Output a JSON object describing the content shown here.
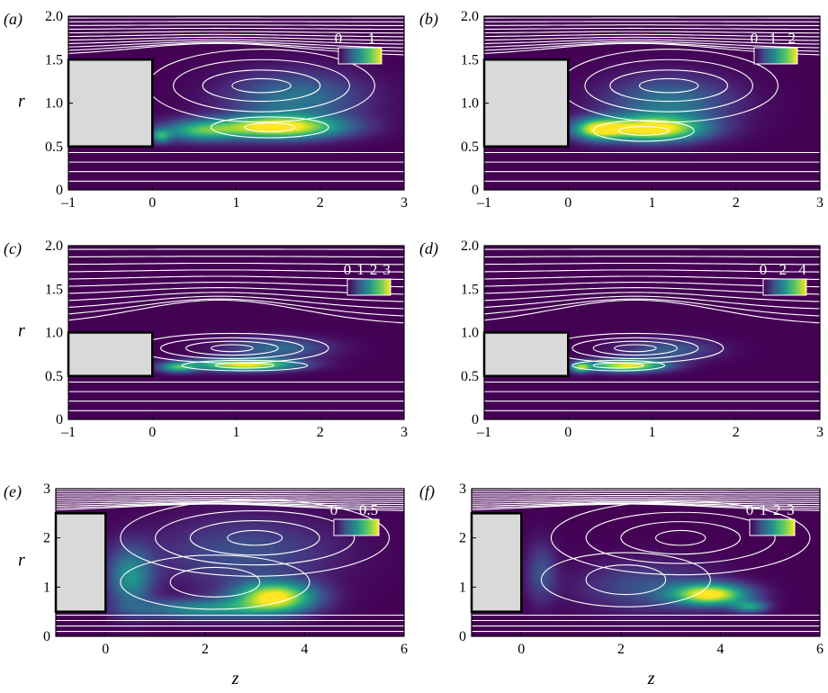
{
  "chart_data": [
    {
      "type": "heatmap",
      "panel_label": "(a)",
      "xlim": [
        -1,
        3
      ],
      "ylim": [
        0,
        2
      ],
      "xticks": [
        "-1",
        "0",
        "1",
        "2",
        "3"
      ],
      "xtick_values": [
        -1,
        0,
        1,
        2,
        3
      ],
      "yticks": [
        "0",
        "0.5",
        "1.0",
        "1.5",
        "2.0"
      ],
      "ytick_values": [
        0,
        0.5,
        1.0,
        1.5,
        2.0
      ],
      "ylabel": "r",
      "xlabel": "",
      "colorbar_ticks": [
        "0",
        "1"
      ],
      "colorbar_tick_values": [
        0,
        1
      ],
      "colorbar_range": [
        0,
        1.3
      ],
      "body": {
        "z0": -1,
        "z1": 0,
        "r0": 0.5,
        "r1": 1.5
      },
      "field": [
        {
          "z": 1.5,
          "r": 0.72,
          "sz": 0.75,
          "sr": 0.13,
          "a": 1.0
        },
        {
          "z": 0.55,
          "r": 0.68,
          "sz": 0.45,
          "sr": 0.12,
          "a": 0.55
        },
        {
          "z": 1.7,
          "r": 1.05,
          "sz": 0.8,
          "sr": 0.3,
          "a": 0.4
        },
        {
          "z": 0.1,
          "r": 0.62,
          "sz": 0.12,
          "sr": 0.08,
          "a": 0.5
        }
      ],
      "vortices": [
        {
          "z": 1.3,
          "r": 1.2,
          "rz": [
            0.35,
            0.7,
            1.05,
            1.35
          ],
          "rr": [
            0.08,
            0.18,
            0.3,
            0.42
          ]
        },
        {
          "z": 1.4,
          "r": 0.72,
          "rz": [
            0.3,
            0.7
          ],
          "rr": [
            0.05,
            0.12
          ]
        }
      ]
    },
    {
      "type": "heatmap",
      "panel_label": "(b)",
      "xlim": [
        -1,
        3
      ],
      "ylim": [
        0,
        2
      ],
      "xticks": [
        "-1",
        "0",
        "1",
        "2",
        "3"
      ],
      "xtick_values": [
        -1,
        0,
        1,
        2,
        3
      ],
      "yticks": [
        "0",
        "0.5",
        "1.0",
        "1.5",
        "2.0"
      ],
      "ytick_values": [
        0,
        0.5,
        1.0,
        1.5,
        2.0
      ],
      "ylabel": "",
      "xlabel": "",
      "colorbar_ticks": [
        "0",
        "1",
        "2"
      ],
      "colorbar_tick_values": [
        0,
        1,
        2
      ],
      "colorbar_range": [
        0,
        2.3
      ],
      "body": {
        "z0": -1,
        "z1": 0,
        "r0": 0.5,
        "r1": 1.5
      },
      "field": [
        {
          "z": 1.0,
          "r": 0.7,
          "sz": 0.6,
          "sr": 0.14,
          "a": 1.0
        },
        {
          "z": 0.35,
          "r": 0.7,
          "sz": 0.3,
          "sr": 0.12,
          "a": 0.8
        },
        {
          "z": 1.2,
          "r": 1.0,
          "sz": 0.75,
          "sr": 0.3,
          "a": 0.4
        }
      ],
      "vortices": [
        {
          "z": 1.2,
          "r": 1.2,
          "rz": [
            0.35,
            0.7,
            1.0,
            1.3
          ],
          "rr": [
            0.08,
            0.18,
            0.3,
            0.42
          ]
        },
        {
          "z": 0.9,
          "r": 0.68,
          "rz": [
            0.3,
            0.6
          ],
          "rr": [
            0.05,
            0.12
          ]
        }
      ]
    },
    {
      "type": "heatmap",
      "panel_label": "(c)",
      "xlim": [
        -1,
        3
      ],
      "ylim": [
        0,
        2
      ],
      "xticks": [
        "-1",
        "0",
        "1",
        "2",
        "3"
      ],
      "xtick_values": [
        -1,
        0,
        1,
        2,
        3
      ],
      "yticks": [
        "0",
        "0.5",
        "1.0",
        "1.5",
        "2.0"
      ],
      "ytick_values": [
        0,
        0.5,
        1.0,
        1.5,
        2.0
      ],
      "ylabel": "r",
      "xlabel": "",
      "colorbar_ticks": [
        "0",
        "1",
        "2",
        "3"
      ],
      "colorbar_tick_values": [
        0,
        1,
        2,
        3
      ],
      "colorbar_range": [
        0,
        3.3
      ],
      "body": {
        "z0": -1,
        "z1": 0,
        "r0": 0.5,
        "r1": 1.0
      },
      "field": [
        {
          "z": 1.1,
          "r": 0.63,
          "sz": 0.6,
          "sr": 0.07,
          "a": 1.0
        },
        {
          "z": 0.3,
          "r": 0.6,
          "sz": 0.22,
          "sr": 0.06,
          "a": 0.6
        },
        {
          "z": 1.5,
          "r": 0.82,
          "sz": 0.6,
          "sr": 0.12,
          "a": 0.35
        }
      ],
      "vortices": [
        {
          "z": 0.95,
          "r": 0.82,
          "rz": [
            0.25,
            0.55,
            0.85,
            1.15
          ],
          "rr": [
            0.04,
            0.08,
            0.12,
            0.17
          ]
        },
        {
          "z": 1.1,
          "r": 0.62,
          "rz": [
            0.35,
            0.75
          ],
          "rr": [
            0.03,
            0.06
          ]
        }
      ]
    },
    {
      "type": "heatmap",
      "panel_label": "(d)",
      "xlim": [
        -1,
        3
      ],
      "ylim": [
        0,
        2
      ],
      "xticks": [
        "-1",
        "0",
        "1",
        "2",
        "3"
      ],
      "xtick_values": [
        -1,
        0,
        1,
        2,
        3
      ],
      "yticks": [
        "0",
        "0.5",
        "1.0",
        "1.5",
        "2.0"
      ],
      "ytick_values": [
        0,
        0.5,
        1.0,
        1.5,
        2.0
      ],
      "ylabel": "",
      "xlabel": "",
      "colorbar_ticks": [
        "0",
        "2",
        "4"
      ],
      "colorbar_tick_values": [
        0,
        2,
        4
      ],
      "colorbar_range": [
        0,
        4.4
      ],
      "body": {
        "z0": -1,
        "z1": 0,
        "r0": 0.5,
        "r1": 1.0
      },
      "field": [
        {
          "z": 0.7,
          "r": 0.62,
          "sz": 0.45,
          "sr": 0.07,
          "a": 1.0
        },
        {
          "z": 0.15,
          "r": 0.6,
          "sz": 0.12,
          "sr": 0.06,
          "a": 0.7
        },
        {
          "z": 1.2,
          "r": 0.8,
          "sz": 0.55,
          "sr": 0.12,
          "a": 0.3
        }
      ],
      "vortices": [
        {
          "z": 0.8,
          "r": 0.82,
          "rz": [
            0.25,
            0.5,
            0.75,
            1.05
          ],
          "rr": [
            0.04,
            0.08,
            0.12,
            0.17
          ]
        },
        {
          "z": 0.6,
          "r": 0.62,
          "rz": [
            0.3,
            0.55
          ],
          "rr": [
            0.03,
            0.06
          ]
        }
      ]
    },
    {
      "type": "heatmap",
      "panel_label": "(e)",
      "xlim": [
        -1,
        6
      ],
      "ylim": [
        0,
        3
      ],
      "xticks": [
        "0",
        "2",
        "4",
        "6"
      ],
      "xtick_values": [
        0,
        2,
        4,
        6
      ],
      "yticks": [
        "0",
        "1",
        "2",
        "3"
      ],
      "ytick_values": [
        0,
        1,
        2,
        3
      ],
      "ylabel": "r",
      "xlabel": "z",
      "colorbar_ticks": [
        "0",
        "0.5"
      ],
      "colorbar_tick_values": [
        0,
        0.5
      ],
      "colorbar_range": [
        0,
        0.65
      ],
      "body": {
        "z0": -1,
        "z1": 0,
        "r0": 0.5,
        "r1": 2.5
      },
      "field": [
        {
          "z": 3.4,
          "r": 0.8,
          "sz": 0.8,
          "sr": 0.3,
          "a": 1.0
        },
        {
          "z": 0.5,
          "r": 1.2,
          "sz": 0.45,
          "sr": 0.6,
          "a": 0.5
        },
        {
          "z": 2.0,
          "r": 0.55,
          "sz": 1.4,
          "sr": 0.2,
          "a": 0.5
        },
        {
          "z": 2.8,
          "r": 1.7,
          "sz": 1.8,
          "sr": 0.7,
          "a": 0.25
        }
      ],
      "vortices": [
        {
          "z": 3.0,
          "r": 2.0,
          "rz": [
            0.55,
            1.3,
            2.0,
            2.7
          ],
          "rr": [
            0.15,
            0.35,
            0.55,
            0.78
          ]
        },
        {
          "z": 2.2,
          "r": 1.1,
          "rz": [
            0.9,
            1.9
          ],
          "rr": [
            0.3,
            0.55
          ]
        }
      ]
    },
    {
      "type": "heatmap",
      "panel_label": "(f)",
      "xlim": [
        -1,
        6
      ],
      "ylim": [
        0,
        3
      ],
      "xticks": [
        "0",
        "2",
        "4",
        "6"
      ],
      "xtick_values": [
        0,
        2,
        4,
        6
      ],
      "yticks": [
        "0",
        "1",
        "2",
        "3"
      ],
      "ytick_values": [
        0,
        1,
        2,
        3
      ],
      "ylabel": "",
      "xlabel": "z",
      "colorbar_ticks": [
        "0",
        "1",
        "2",
        "3"
      ],
      "colorbar_tick_values": [
        0,
        1,
        2,
        3
      ],
      "colorbar_range": [
        0,
        3.3
      ],
      "body": {
        "z0": -1,
        "z1": 0,
        "r0": 0.5,
        "r1": 2.5
      },
      "field": [
        {
          "z": 3.8,
          "r": 0.85,
          "sz": 0.75,
          "sr": 0.22,
          "a": 1.0
        },
        {
          "z": 4.6,
          "r": 0.6,
          "sz": 0.35,
          "sr": 0.12,
          "a": 0.5
        },
        {
          "z": 2.5,
          "r": 1.0,
          "sz": 1.3,
          "sr": 0.5,
          "a": 0.25
        },
        {
          "z": 0.4,
          "r": 1.3,
          "sz": 0.3,
          "sr": 0.6,
          "a": 0.25
        }
      ],
      "vortices": [
        {
          "z": 3.2,
          "r": 2.0,
          "rz": [
            0.5,
            1.2,
            1.9,
            2.6
          ],
          "rr": [
            0.15,
            0.33,
            0.52,
            0.75
          ]
        },
        {
          "z": 2.1,
          "r": 1.15,
          "rz": [
            0.8,
            1.7
          ],
          "rr": [
            0.3,
            0.55
          ]
        }
      ]
    }
  ]
}
